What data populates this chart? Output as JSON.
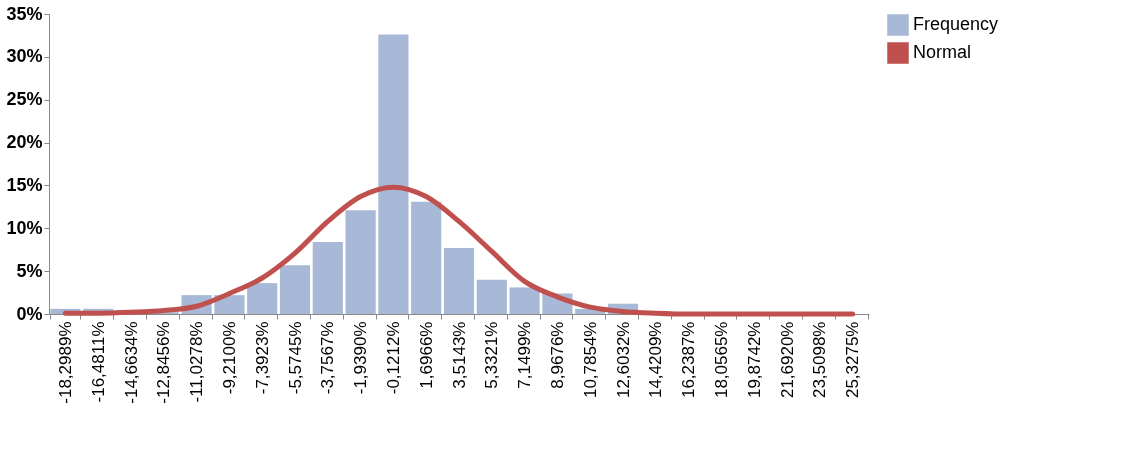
{
  "chart_data": {
    "type": "bar",
    "categories": [
      "-18,2989%",
      "-16,4811%",
      "-14,6634%",
      "-12,8456%",
      "-11,0278%",
      "-9,2100%",
      "-7,3923%",
      "-5,5745%",
      "-3,7567%",
      "-1,9390%",
      "-0,1212%",
      "1,6966%",
      "3,5143%",
      "5,3321%",
      "7,1499%",
      "8,9676%",
      "10,7854%",
      "12,6032%",
      "14,4209%",
      "16,2387%",
      "18,0565%",
      "19,8742%",
      "21,6920%",
      "23,5098%",
      "25,3275%"
    ],
    "series": [
      {
        "name": "Frequency",
        "color": "#a7b9d7",
        "values": [
          0.6,
          0.6,
          0,
          0.2,
          2.2,
          2.2,
          3.6,
          5.7,
          8.4,
          12.1,
          32.6,
          13.1,
          7.7,
          4.0,
          3.1,
          2.4,
          0.6,
          1.2,
          0,
          0,
          0,
          0,
          0,
          0,
          0
        ]
      },
      {
        "name": "Normal",
        "type": "line",
        "color": "#c0504d",
        "values": [
          0.1,
          0.1,
          0.2,
          0.4,
          0.9,
          2.4,
          4.2,
          7.1,
          10.8,
          13.7,
          14.8,
          13.7,
          10.8,
          7.3,
          3.8,
          2.0,
          0.8,
          0.3,
          0.1,
          0,
          0,
          0,
          0,
          0,
          0
        ]
      }
    ],
    "ylim": [
      0,
      35
    ],
    "yticks": [
      {
        "value": 0,
        "label": "0%"
      },
      {
        "value": 5,
        "label": "5%"
      },
      {
        "value": 10,
        "label": "10%"
      },
      {
        "value": 15,
        "label": "15%"
      },
      {
        "value": 20,
        "label": "20%"
      },
      {
        "value": 25,
        "label": "25%"
      },
      {
        "value": 30,
        "label": "30%"
      },
      {
        "value": 35,
        "label": "35%"
      }
    ],
    "grid": false,
    "legend": "right"
  }
}
